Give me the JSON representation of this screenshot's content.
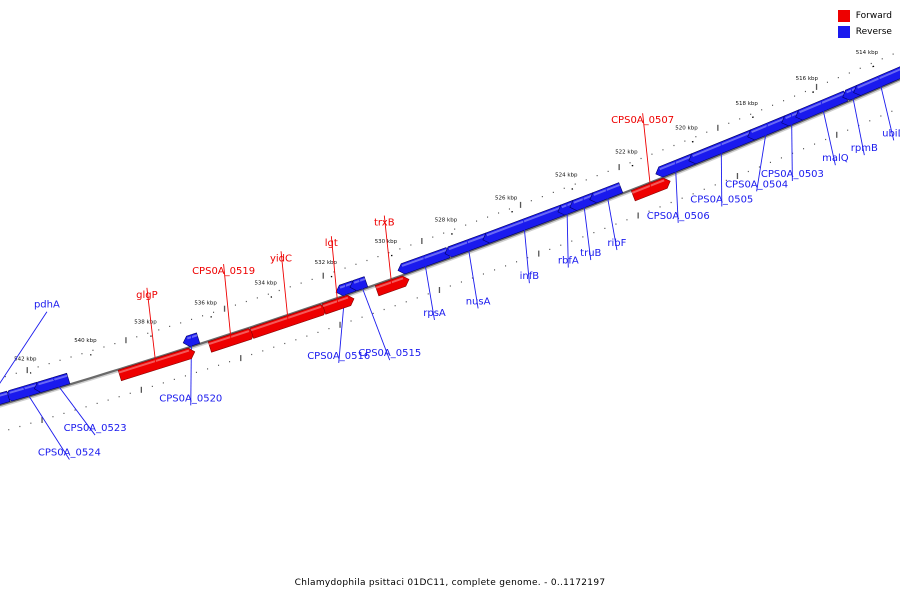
{
  "caption": "Chlamydophila psittaci 01DC11, complete genome. - 0..1172197",
  "legend": {
    "forward_label": "Forward",
    "reverse_label": "Reverse",
    "forward_color": "#ee0000",
    "reverse_color": "#1a1aee"
  },
  "ticks": [
    {
      "label": "542 kbp",
      "kbp": 542
    },
    {
      "label": "540 kbp",
      "kbp": 540
    },
    {
      "label": "538 kbp",
      "kbp": 538
    },
    {
      "label": "536 kbp",
      "kbp": 536
    },
    {
      "label": "534 kbp",
      "kbp": 534
    },
    {
      "label": "532 kbp",
      "kbp": 532
    },
    {
      "label": "530 kbp",
      "kbp": 530
    },
    {
      "label": "528 kbp",
      "kbp": 528
    },
    {
      "label": "526 kbp",
      "kbp": 526
    },
    {
      "label": "524 kbp",
      "kbp": 524
    },
    {
      "label": "522 kbp",
      "kbp": 522
    },
    {
      "label": "520 kbp",
      "kbp": 520
    },
    {
      "label": "518 kbp",
      "kbp": 518
    },
    {
      "label": "516 kbp",
      "kbp": 516
    },
    {
      "label": "514 kbp",
      "kbp": 514
    }
  ],
  "genes": [
    {
      "name": "CPS0A_0524",
      "strand": "reverse"
    },
    {
      "name": "CPS0A_0523",
      "strand": "reverse"
    },
    {
      "name": "CPS0A_0520",
      "strand": "reverse"
    },
    {
      "name": "CPS0A_0516",
      "strand": "reverse"
    },
    {
      "name": "CPS0A_0515",
      "strand": "reverse"
    },
    {
      "name": "rpsA",
      "strand": "reverse"
    },
    {
      "name": "nusA",
      "strand": "reverse"
    },
    {
      "name": "infB",
      "strand": "reverse"
    },
    {
      "name": "rbfA",
      "strand": "reverse"
    },
    {
      "name": "truB",
      "strand": "reverse"
    },
    {
      "name": "ribF",
      "strand": "reverse"
    },
    {
      "name": "CPS0A_0506",
      "strand": "reverse"
    },
    {
      "name": "CPS0A_0505",
      "strand": "reverse"
    },
    {
      "name": "CPS0A_0504",
      "strand": "reverse"
    },
    {
      "name": "CPS0A_0503",
      "strand": "reverse"
    },
    {
      "name": "malQ",
      "strand": "reverse"
    },
    {
      "name": "rpmB",
      "strand": "reverse"
    },
    {
      "name": "ubiD",
      "strand": "reverse"
    },
    {
      "name": "pdhA",
      "strand": "reverse"
    },
    {
      "name": "glgP",
      "strand": "forward"
    },
    {
      "name": "CPS0A_0519",
      "strand": "forward"
    },
    {
      "name": "yidC",
      "strand": "forward"
    },
    {
      "name": "lgt",
      "strand": "forward"
    },
    {
      "name": "trxB",
      "strand": "forward"
    },
    {
      "name": "CPS0A_0507",
      "strand": "forward"
    }
  ]
}
